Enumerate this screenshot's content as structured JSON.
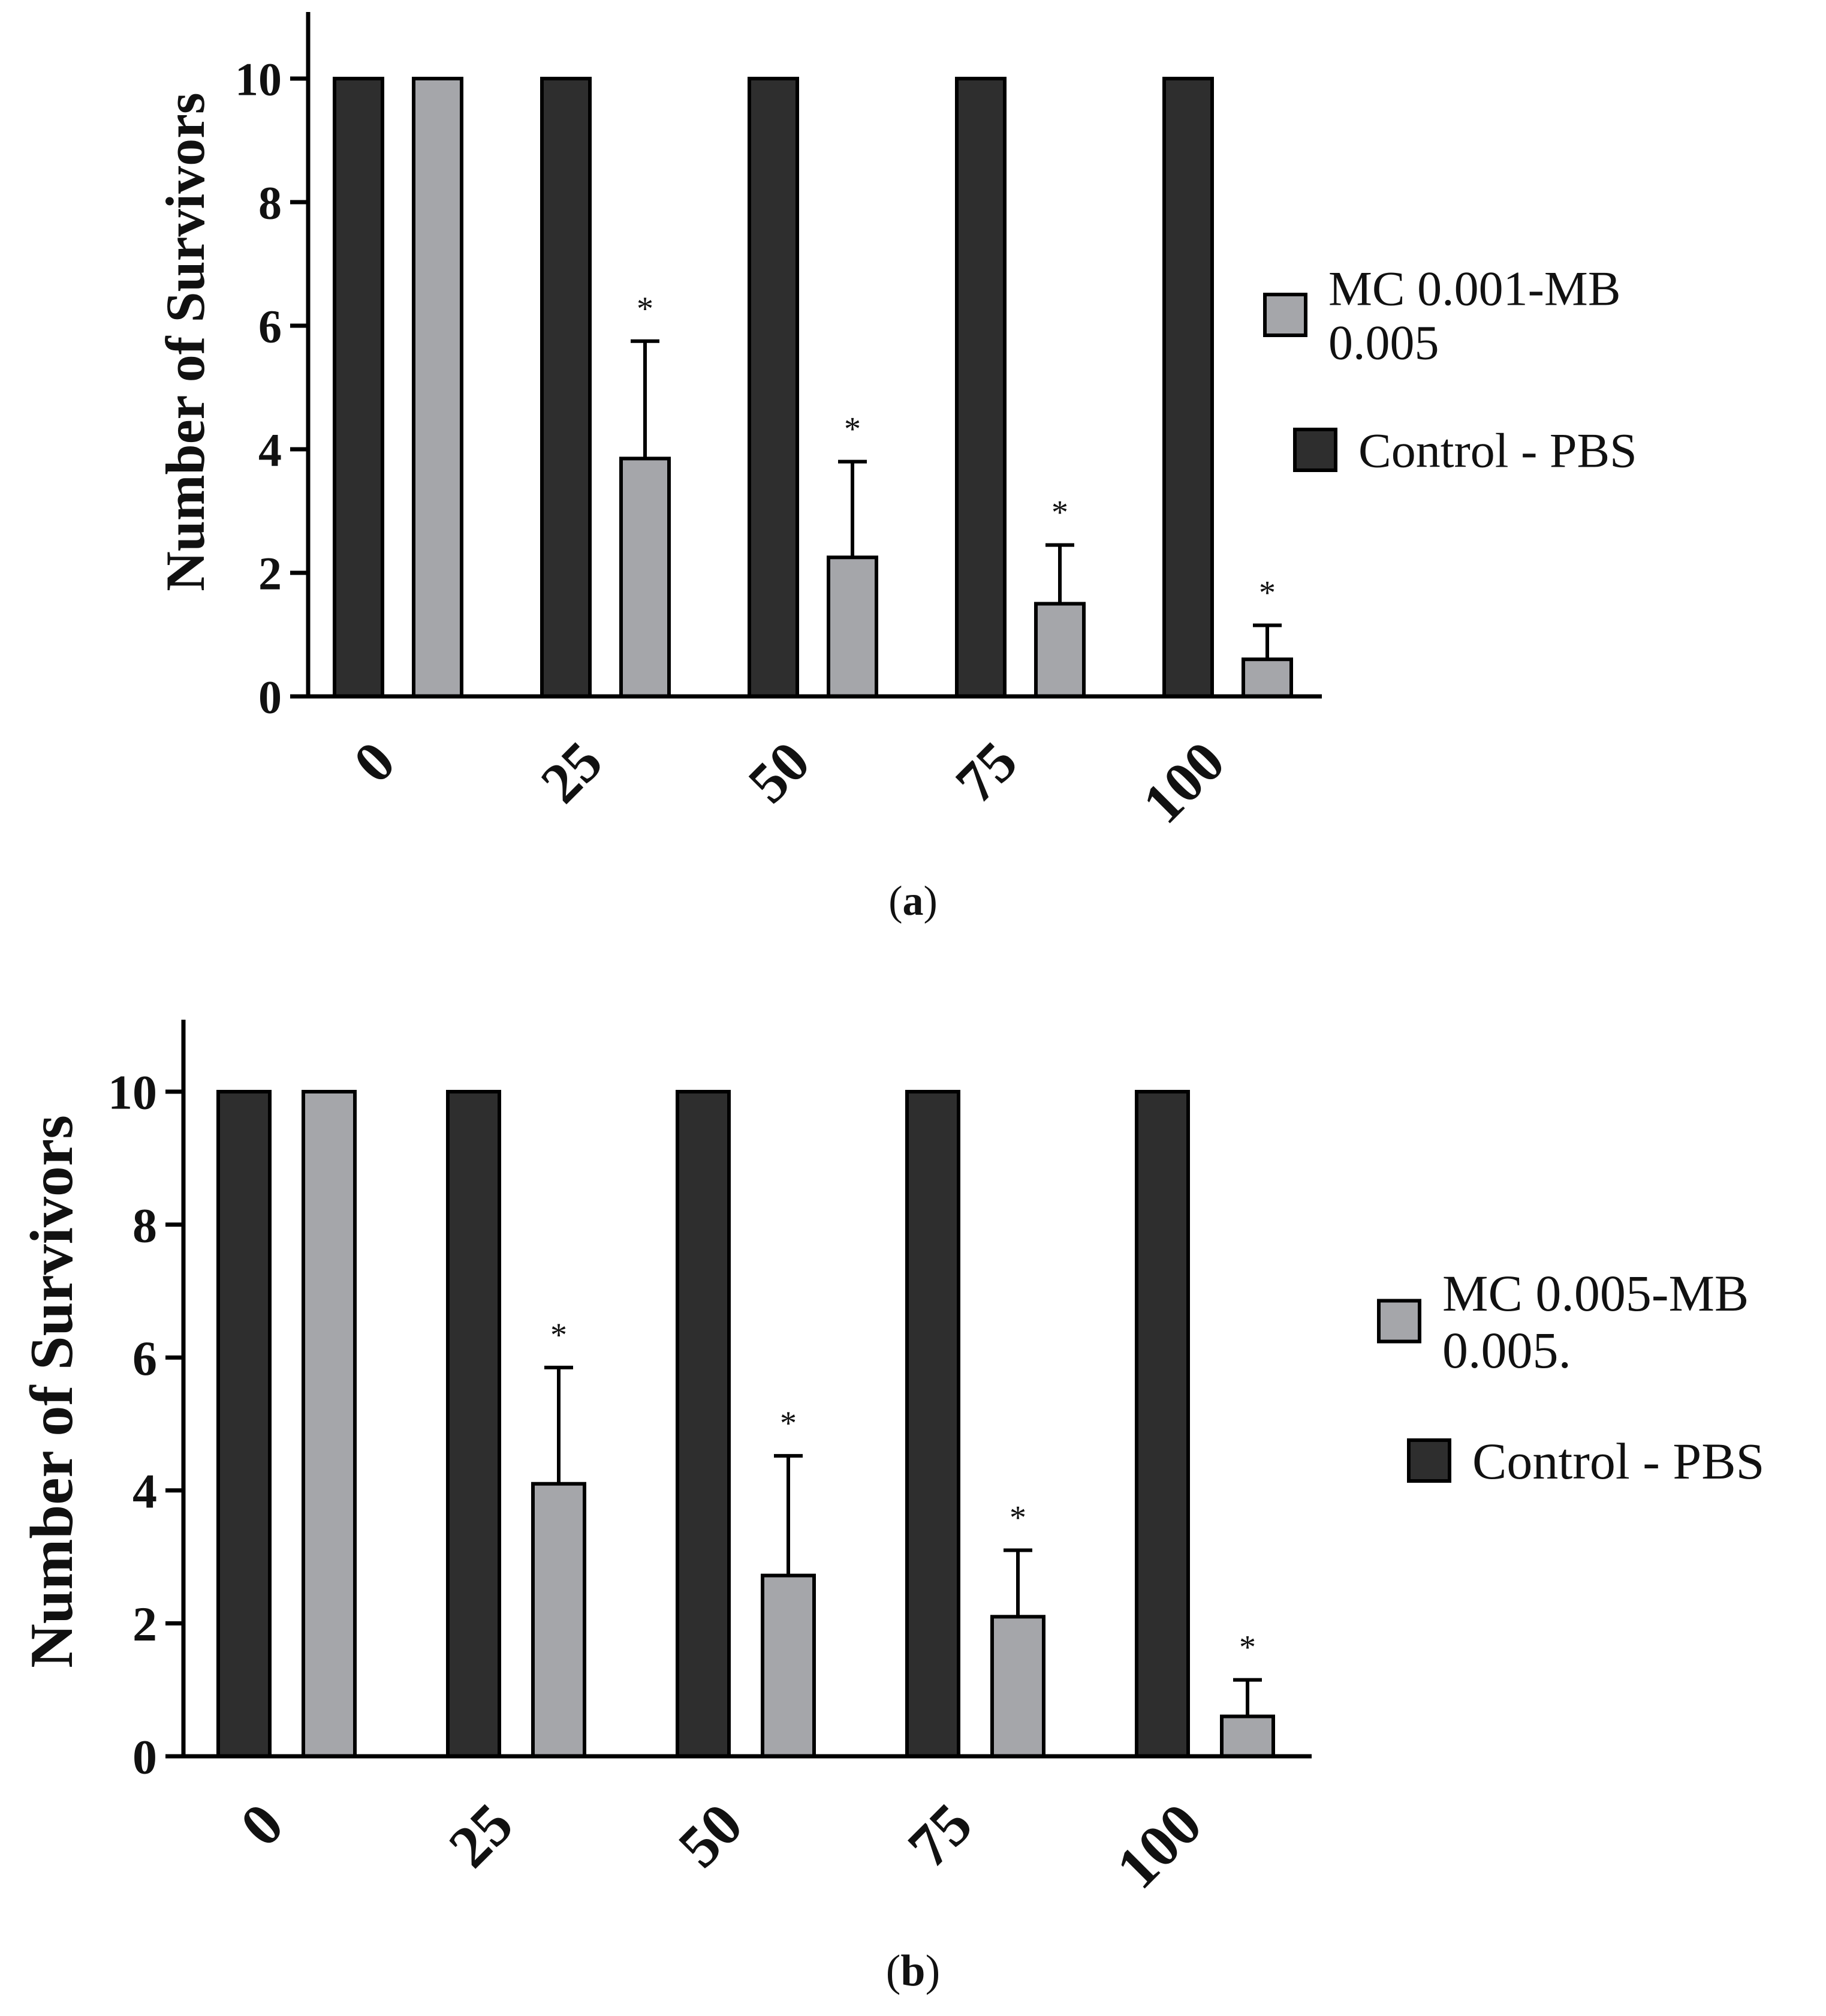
{
  "chart_data": [
    {
      "type": "bar",
      "panel_label": "(a)",
      "ylabel": "Number of Survivors",
      "xlabel": "",
      "ylim": [
        0,
        11
      ],
      "yticks": [
        0,
        2,
        4,
        6,
        8,
        10
      ],
      "categories": [
        "0",
        "25",
        "50",
        "75",
        "100"
      ],
      "series": [
        {
          "name": "Control - PBS",
          "color": "#2e2e2e",
          "values": [
            10,
            10,
            10,
            10,
            10
          ],
          "errors": [
            0,
            0,
            0,
            0,
            0
          ]
        },
        {
          "name": "MC 0.001-MB 0.005",
          "legend_lines": [
            "MC 0.001-MB",
            "0.005"
          ],
          "color": "#a5a6aa",
          "values": [
            10,
            3.85,
            2.25,
            1.5,
            0.6
          ],
          "errors": [
            0,
            1.9,
            1.55,
            0.95,
            0.55
          ]
        }
      ],
      "legend_order": [
        1,
        0
      ],
      "significance": [
        "",
        "*",
        "*",
        "*",
        "*"
      ]
    },
    {
      "type": "bar",
      "panel_label": "(b)",
      "ylabel": "Number of Survivors",
      "xlabel": "",
      "ylim": [
        0,
        11
      ],
      "yticks": [
        0,
        2,
        4,
        6,
        8,
        10
      ],
      "categories": [
        "0",
        "25",
        "50",
        "75",
        "100"
      ],
      "series": [
        {
          "name": "Control - PBS",
          "color": "#2e2e2e",
          "values": [
            10,
            10,
            10,
            10,
            10
          ],
          "errors": [
            0,
            0,
            0,
            0,
            0
          ]
        },
        {
          "name": "MC 0.005-MB 0.005.",
          "legend_lines": [
            "MC 0.005-MB",
            "0.005."
          ],
          "color": "#a5a6aa",
          "values": [
            10,
            4.1,
            2.72,
            2.1,
            0.6
          ],
          "errors": [
            0,
            1.75,
            1.8,
            1.0,
            0.55
          ]
        }
      ],
      "legend_order": [
        1,
        0
      ],
      "significance": [
        "",
        "*",
        "*",
        "*",
        "*"
      ]
    }
  ]
}
